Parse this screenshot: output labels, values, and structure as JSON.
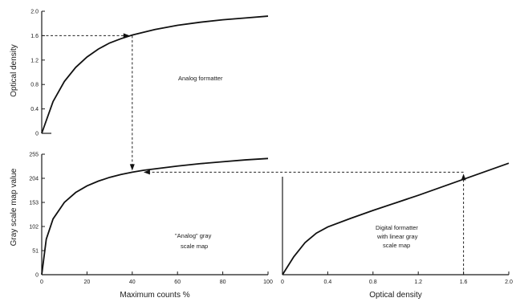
{
  "chart_data": [
    {
      "type": "line",
      "ylabel": "Optical density",
      "xlim": [
        0,
        100
      ],
      "ylim": [
        0,
        2.0
      ],
      "yticks": [
        "0",
        "0.4",
        "0.8",
        "1.2",
        "1.6",
        "2.0"
      ],
      "annotation": "Analog formatter",
      "grid": false,
      "series": [
        {
          "x": [
            0,
            5,
            10,
            15,
            20,
            25,
            30,
            35,
            40,
            50,
            60,
            70,
            80,
            90,
            100
          ],
          "y": [
            0,
            0.52,
            0.85,
            1.08,
            1.25,
            1.38,
            1.48,
            1.55,
            1.61,
            1.7,
            1.77,
            1.82,
            1.86,
            1.89,
            1.92
          ]
        }
      ]
    },
    {
      "type": "line",
      "xlabel": "Maximum counts  %",
      "ylabel": "Gray scale map value",
      "xlim": [
        0,
        100
      ],
      "ylim": [
        0,
        255
      ],
      "xticks": [
        "0",
        "20",
        "40",
        "60",
        "80",
        "100"
      ],
      "yticks": [
        "0",
        "51",
        "102",
        "153",
        "204",
        "255"
      ],
      "annotation": [
        "\"Analog\" gray",
        "scale map"
      ],
      "grid": false,
      "series": [
        {
          "x": [
            0,
            2,
            5,
            10,
            15,
            20,
            25,
            30,
            35,
            40,
            45,
            50,
            60,
            70,
            80,
            90,
            100
          ],
          "y": [
            0,
            75,
            118,
            153,
            174,
            188,
            198,
            206,
            212,
            217,
            221,
            224,
            230,
            235,
            239,
            243,
            246
          ]
        }
      ]
    },
    {
      "type": "line",
      "xlabel": "Optical density",
      "xlim": [
        0,
        2.0
      ],
      "ylim": [
        0,
        255
      ],
      "xticks": [
        "0",
        "0.4",
        "0.8",
        "1.2",
        "1.6",
        "2.0"
      ],
      "annotation": [
        "Digital formatter",
        "with linear gray",
        "scale map"
      ],
      "grid": false,
      "series": [
        {
          "x": [
            0,
            0.1,
            0.2,
            0.3,
            0.4,
            0.6,
            0.8,
            1.0,
            1.2,
            1.4,
            1.6,
            1.8,
            2.0
          ],
          "y": [
            0,
            38,
            68,
            88,
            101,
            119,
            136,
            152,
            168,
            185,
            202,
            219,
            236
          ]
        }
      ]
    }
  ],
  "guides": {
    "lookup_x_percent": 40,
    "lookup_density": 1.6,
    "lookup_gray": 217
  }
}
